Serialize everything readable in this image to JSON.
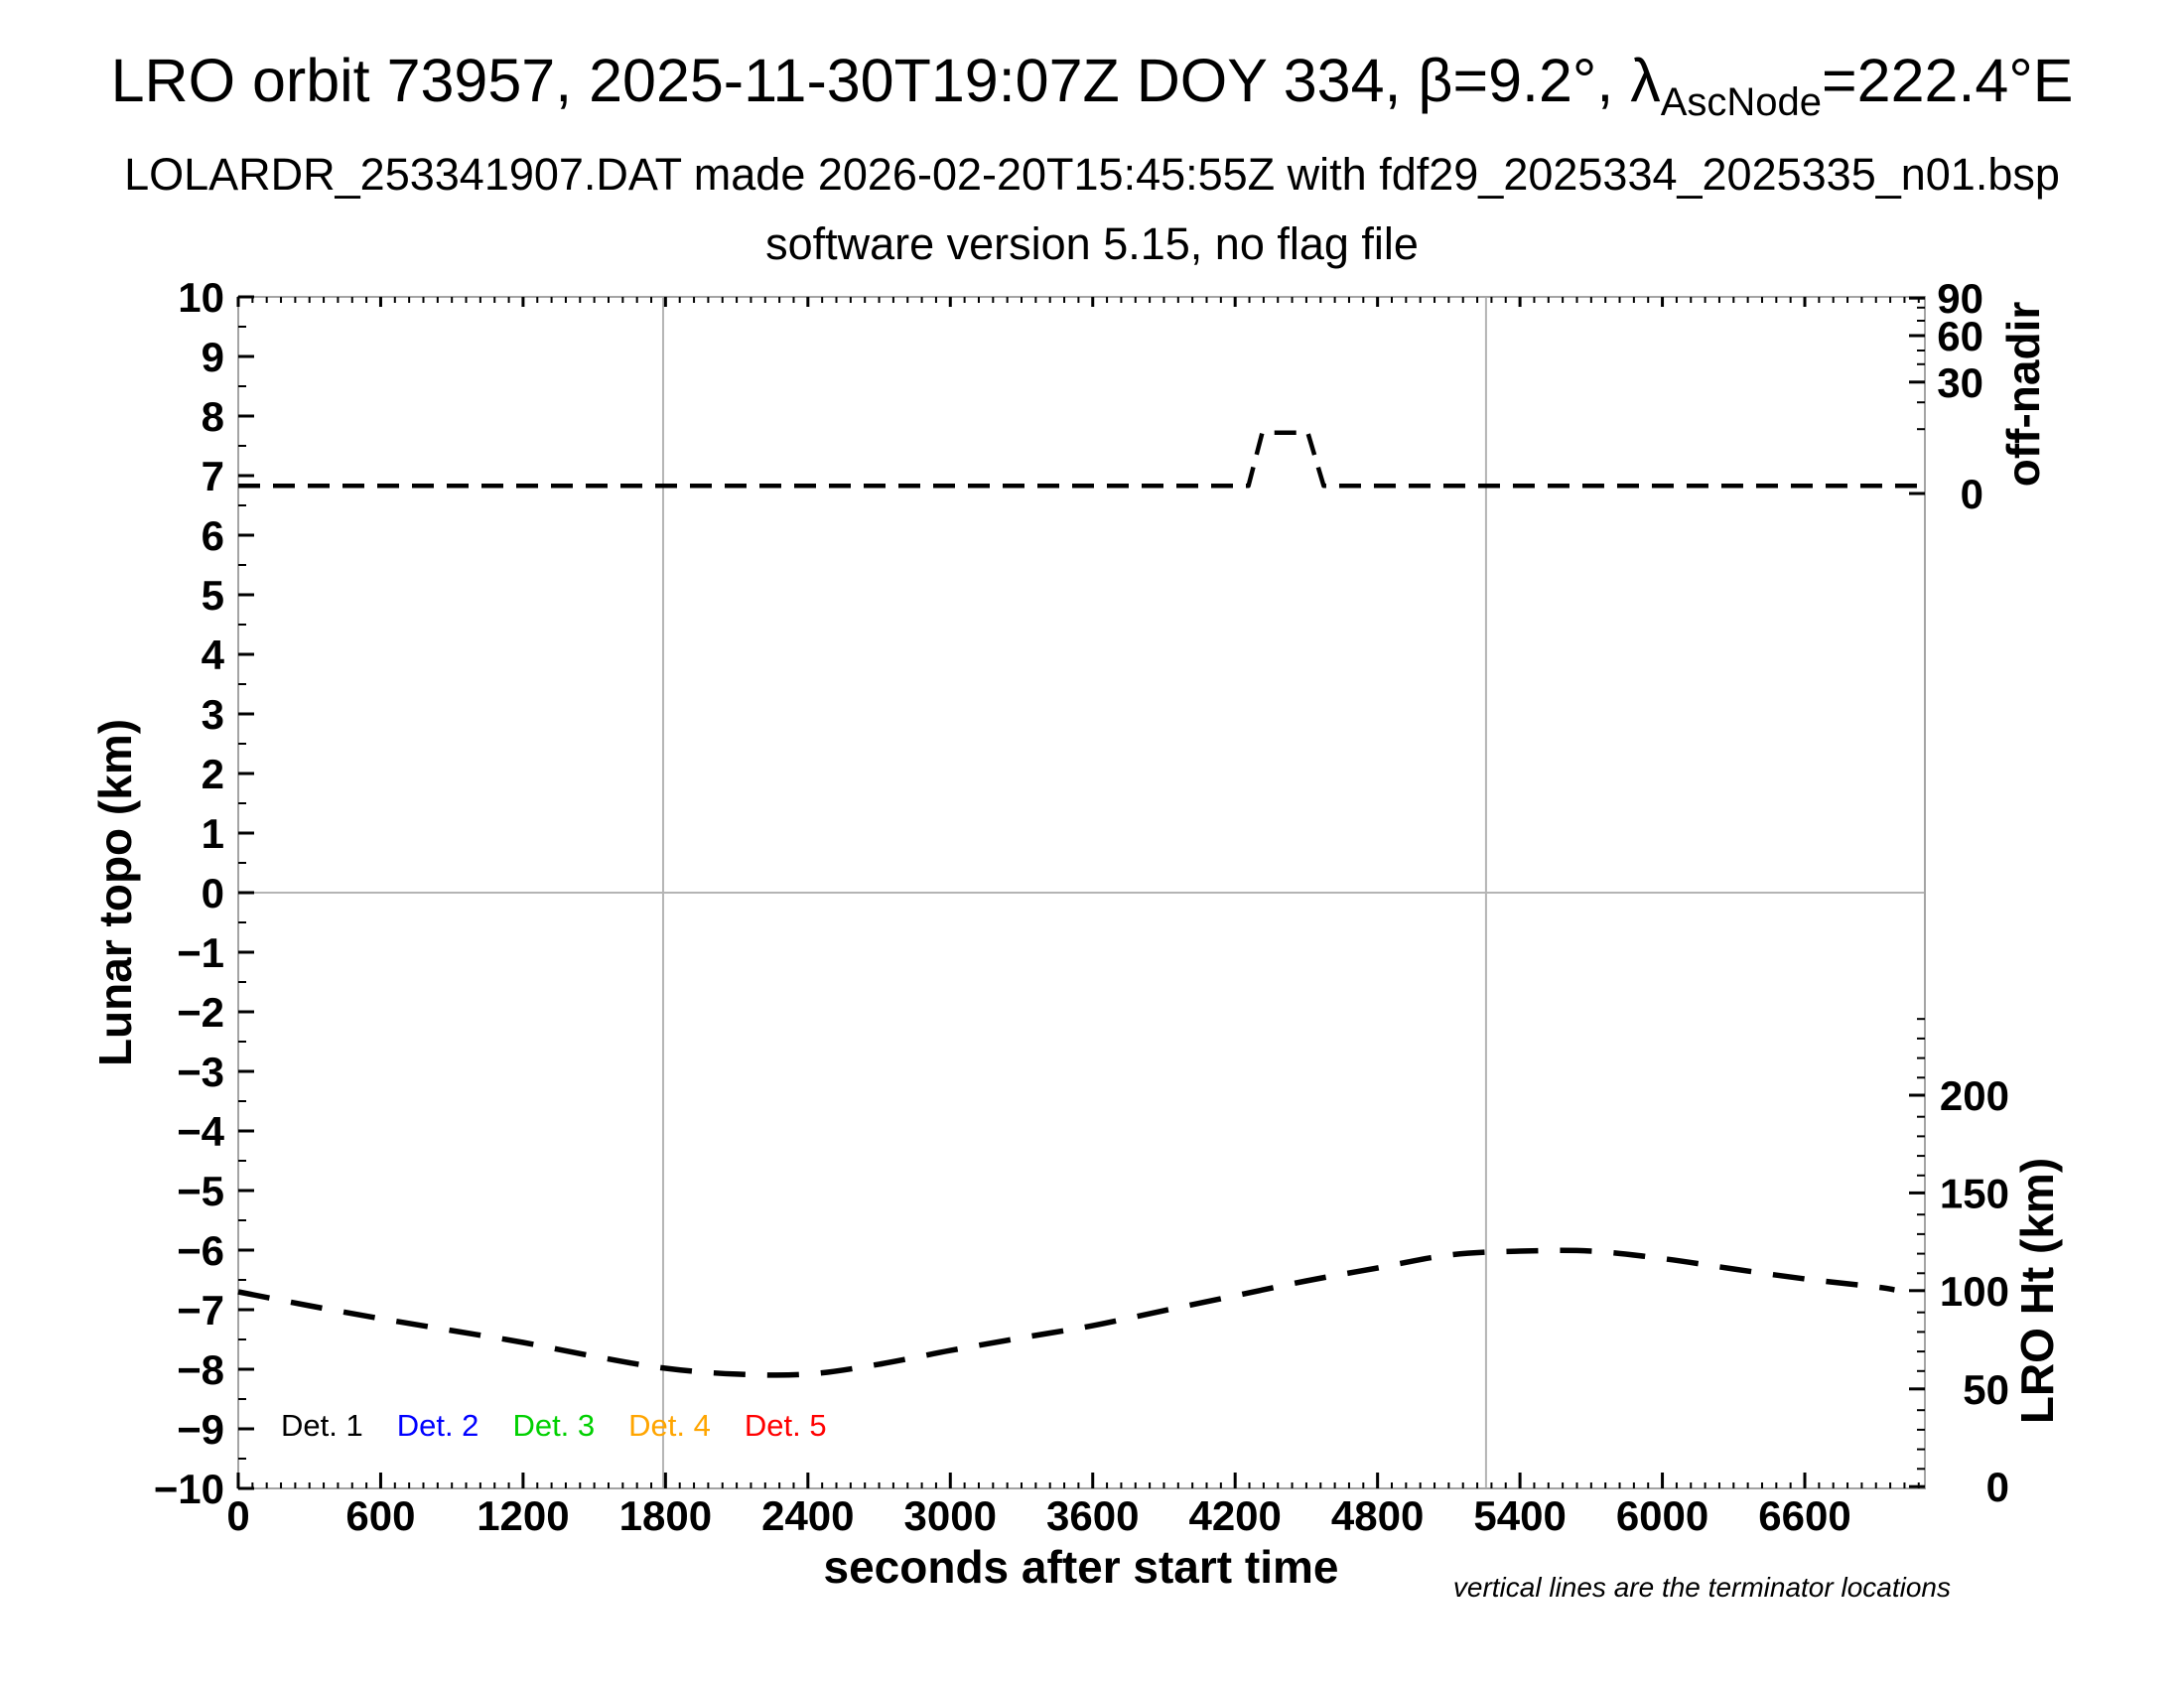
{
  "header": {
    "title_prefix": "LRO orbit 73957, 2025-11-30T19:07Z DOY 334, β=9.2°, λ",
    "title_sub": "AscNode",
    "title_suffix": "=222.4°E",
    "line2": "LOLARDR_253341907.DAT made 2026-02-20T15:45:55Z with fdf29_2025334_2025335_n01.bsp",
    "line3": "software version 5.15, no flag file"
  },
  "footnote": "vertical lines are the terminator locations",
  "legend": [
    {
      "label": "Det. 1",
      "color": "#000000"
    },
    {
      "label": "Det. 2",
      "color": "#0000ff"
    },
    {
      "label": "Det. 3",
      "color": "#00d000"
    },
    {
      "label": "Det. 4",
      "color": "#ffa500"
    },
    {
      "label": "Det. 5",
      "color": "#ff0000"
    }
  ],
  "chart_data": {
    "type": "line",
    "title": "LRO orbit 73957, 2025-11-30T19:07Z DOY 334, β=9.2°, λAscNode=222.4°E",
    "x_axis": {
      "label": "seconds after start time",
      "range": [
        0,
        7106
      ],
      "major_tick_step": 600,
      "minor_tick_step": 60,
      "tick_labels": [
        "0",
        "600",
        "1200",
        "1800",
        "2400",
        "3000",
        "3600",
        "4200",
        "4800",
        "5400",
        "6000",
        "6600"
      ]
    },
    "y_axis_left": {
      "label": "Lunar topo (km)",
      "range": [
        -10,
        10
      ],
      "major_tick_step": 1,
      "minor_tick_step": 0.5,
      "tick_labels": [
        "10",
        "9",
        "8",
        "7",
        "6",
        "5",
        "4",
        "3",
        "2",
        "1",
        "0",
        "−1",
        "−2",
        "−3",
        "−4",
        "−5",
        "−6",
        "−7",
        "−8",
        "−9",
        "−10"
      ]
    },
    "y_axis_right_top": {
      "label": "off-nadir",
      "scale": "nonlinear (angle, deg)",
      "major_ticks": [
        {
          "label": "90",
          "topo_pos": 9.98
        },
        {
          "label": "60",
          "topo_pos": 9.35
        },
        {
          "label": "30",
          "topo_pos": 8.57
        },
        {
          "label": "0",
          "topo_pos": 6.7
        }
      ],
      "minor_ticks_topo_pos": [
        9.82,
        9.6,
        9.1,
        8.87,
        8.23,
        7.78
      ]
    },
    "y_axis_right_bottom": {
      "label": "LRO Ht (km)",
      "range_km": [
        0,
        240
      ],
      "km_per_topo_unit": 30.456,
      "major_ticks": [
        {
          "label": "200",
          "topo_pos": -3.4
        },
        {
          "label": "150",
          "topo_pos": -5.04
        },
        {
          "label": "100",
          "topo_pos": -6.68
        },
        {
          "label": "50",
          "topo_pos": -8.33
        },
        {
          "label": "0",
          "topo_pos": -9.97
        }
      ],
      "minor_tick_step_km": 10
    },
    "gridlines": {
      "horizontal_topo": [
        0
      ],
      "vertical_terminator_s": [
        1790,
        5257
      ],
      "grid_color": "#b4b4b4",
      "frame_color": "#a4a4a4"
    },
    "series": [
      {
        "name": "off-nadir angle",
        "style": "dashed",
        "color": "#000000",
        "note": "plotted against nonlinear off-nadir axis; baseline ≈3°, peak ≈18° between ~4310–4510 s",
        "points_s_topo": [
          [
            0,
            6.83
          ],
          [
            4256,
            6.83
          ],
          [
            4314,
            7.72
          ],
          [
            4506,
            7.72
          ],
          [
            4573,
            6.83
          ],
          [
            7106,
            6.83
          ]
        ]
      },
      {
        "name": "LRO Ht",
        "style": "dashed",
        "color": "#000000",
        "points_s_km": [
          [
            0,
            100.5
          ],
          [
            300,
            93.4
          ],
          [
            600,
            86.8
          ],
          [
            900,
            80.7
          ],
          [
            1200,
            74.6
          ],
          [
            1500,
            67.5
          ],
          [
            1800,
            61.4
          ],
          [
            2100,
            58.4
          ],
          [
            2400,
            58.4
          ],
          [
            2700,
            63.5
          ],
          [
            3000,
            70.5
          ],
          [
            3300,
            77.0
          ],
          [
            3600,
            83.2
          ],
          [
            3900,
            90.9
          ],
          [
            4200,
            98.5
          ],
          [
            4500,
            106.1
          ],
          [
            4800,
            112.7
          ],
          [
            5100,
            119.3
          ],
          [
            5400,
            121.3
          ],
          [
            5700,
            121.3
          ],
          [
            6000,
            117.5
          ],
          [
            6300,
            112.2
          ],
          [
            6600,
            107.1
          ],
          [
            6900,
            103.0
          ],
          [
            6978,
            101.5
          ]
        ]
      }
    ],
    "legend_entries": [
      "Det. 1",
      "Det. 2",
      "Det. 3",
      "Det. 4",
      "Det. 5"
    ],
    "annotation": "vertical lines are the terminator locations"
  }
}
